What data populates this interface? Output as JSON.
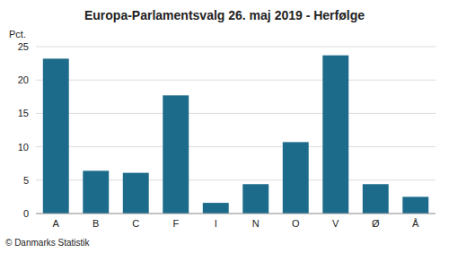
{
  "chart_data": {
    "type": "bar",
    "title": "Europa-Parlamentsvalg 26. maj 2019 - Herfølge",
    "categories": [
      "A",
      "B",
      "C",
      "F",
      "I",
      "N",
      "O",
      "V",
      "Ø",
      "Å"
    ],
    "values": [
      23.2,
      6.4,
      6.1,
      17.7,
      1.6,
      4.4,
      10.7,
      23.7,
      4.4,
      2.5
    ],
    "color": "#1c6b8a",
    "ylabel": "Pct.",
    "ylim": [
      0,
      25
    ],
    "yticks": [
      0,
      5,
      10,
      15,
      20,
      25
    ],
    "grid": true,
    "annotations": [
      "© Danmarks Statistik"
    ]
  }
}
